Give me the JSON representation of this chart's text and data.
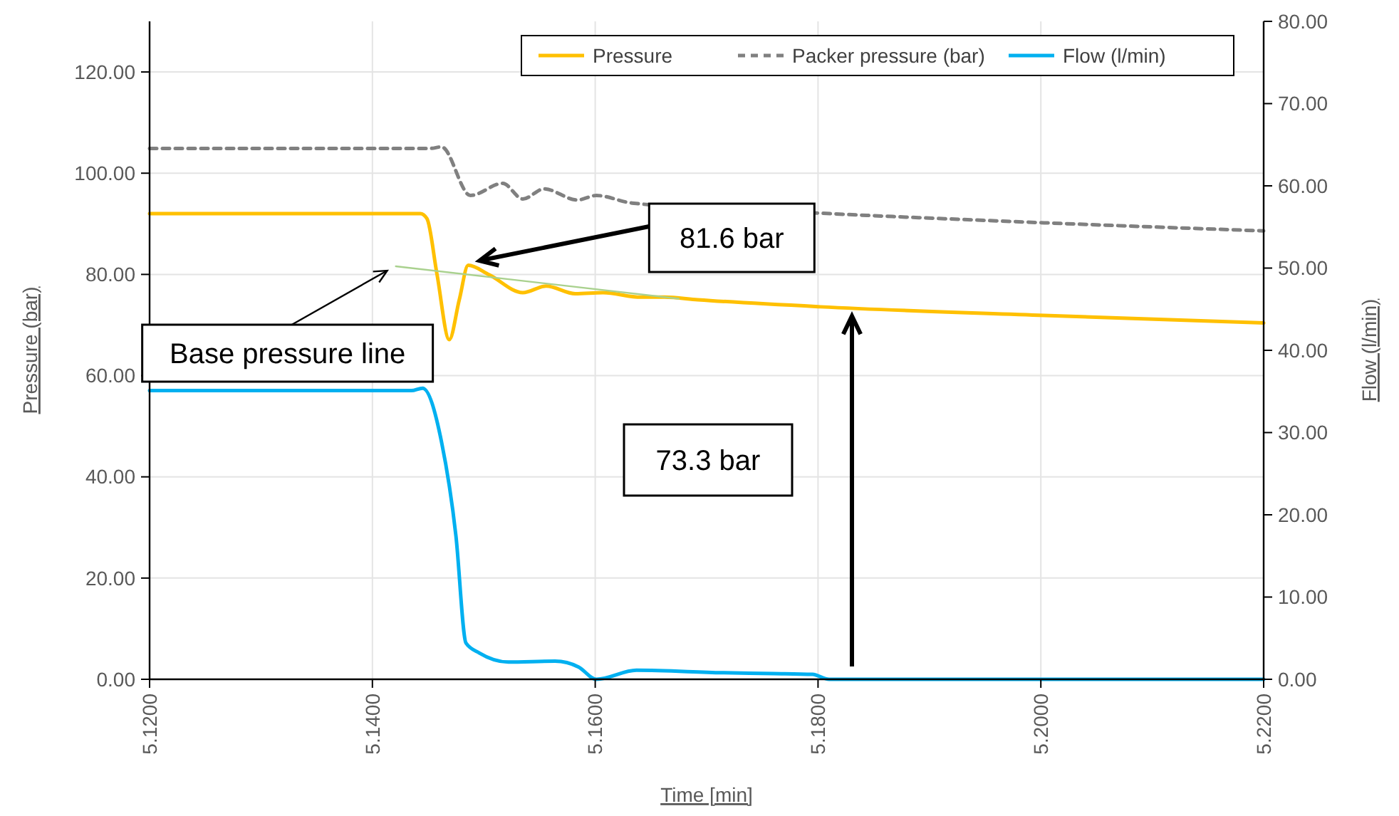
{
  "chart_data": {
    "type": "line",
    "xlabel": "Time [min]",
    "ylabel": "Pressure (bar)",
    "y2label": "Flow (l/min)",
    "xlim": [
      5.12,
      5.22
    ],
    "xticks": [
      {
        "value": 5.12,
        "label": "5.1200"
      },
      {
        "value": 5.14,
        "label": "5.1400"
      },
      {
        "value": 5.16,
        "label": "5.1600"
      },
      {
        "value": 5.18,
        "label": "5.1800"
      },
      {
        "value": 5.2,
        "label": "5.2000"
      },
      {
        "value": 5.22,
        "label": "5.2200"
      }
    ],
    "ylim": [
      0,
      130
    ],
    "yticks": [
      {
        "value": 0,
        "label": "0.00"
      },
      {
        "value": 20,
        "label": "20.00"
      },
      {
        "value": 40,
        "label": "40.00"
      },
      {
        "value": 60,
        "label": "60.00"
      },
      {
        "value": 80,
        "label": "80.00"
      },
      {
        "value": 100,
        "label": "100.00"
      },
      {
        "value": 120,
        "label": "120.00"
      }
    ],
    "y2lim": [
      0,
      80
    ],
    "y2ticks": [
      {
        "value": 0,
        "label": "0.00"
      },
      {
        "value": 10,
        "label": "10.00"
      },
      {
        "value": 20,
        "label": "20.00"
      },
      {
        "value": 30,
        "label": "30.00"
      },
      {
        "value": 40,
        "label": "40.00"
      },
      {
        "value": 50,
        "label": "50.00"
      },
      {
        "value": 60,
        "label": "60.00"
      },
      {
        "value": 70,
        "label": "70.00"
      },
      {
        "value": 80,
        "label": "80.00"
      }
    ],
    "grid": true,
    "legend": "top right",
    "series": [
      {
        "name": "Pressure",
        "color": "#ffc000",
        "x": [
          5.12,
          5.13,
          5.14,
          5.1443,
          5.1449,
          5.1458,
          5.1469,
          5.1478,
          5.1486,
          5.1505,
          5.1535,
          5.1556,
          5.1582,
          5.1607,
          5.1641,
          5.1662,
          5.1692,
          5.1802,
          5.2003,
          5.22
        ],
        "values": [
          92.0,
          92.0,
          92.0,
          92.0,
          91.0,
          80.0,
          67.1,
          75.0,
          81.8,
          79.9,
          76.4,
          77.7,
          76.2,
          76.4,
          75.5,
          75.5,
          75.0,
          73.6,
          71.9,
          70.4
        ]
      },
      {
        "name": "Packer pressure (bar)",
        "color": "#808080",
        "line_style": "dashed",
        "x": [
          5.12,
          5.13,
          5.14,
          5.1452,
          5.1462,
          5.1488,
          5.1517,
          5.1535,
          5.1554,
          5.1584,
          5.1601,
          5.1633,
          5.17,
          5.1802,
          5.2003,
          5.22
        ],
        "values": [
          104.9,
          104.9,
          104.9,
          104.9,
          105.2,
          95.6,
          98.0,
          94.9,
          96.9,
          94.7,
          95.6,
          94.1,
          null,
          92.1,
          90.2,
          88.6
        ]
      },
      {
        "name": "Flow (l/min)",
        "color": "#00b0f0",
        "axis": "y2",
        "x": [
          5.12,
          5.13,
          5.14,
          5.1435,
          5.1445,
          5.1462,
          5.1475,
          5.1484,
          5.1496,
          5.1522,
          5.1564,
          5.1585,
          5.1601,
          5.1637,
          5.1714,
          5.176,
          5.1795,
          5.181,
          5.2,
          5.22
        ],
        "values": [
          35.1,
          35.1,
          35.1,
          35.1,
          35.4,
          28.9,
          17.4,
          4.4,
          3.2,
          2.1,
          2.2,
          1.5,
          0,
          1.1,
          0.8,
          0.7,
          0.6,
          0,
          0,
          0
        ]
      },
      {
        "color": "#a9d18e",
        "x": [
          5.1421,
          5.1675
        ],
        "values": [
          81.6,
          75.2
        ]
      }
    ],
    "annotations": [
      {
        "text": "81.6 bar",
        "x": 5.1486,
        "y": 81.6
      },
      "73.3 bar",
      {
        "text": "Base pressure line",
        "x": 5.1421,
        "y": 81.6
      }
    ]
  }
}
